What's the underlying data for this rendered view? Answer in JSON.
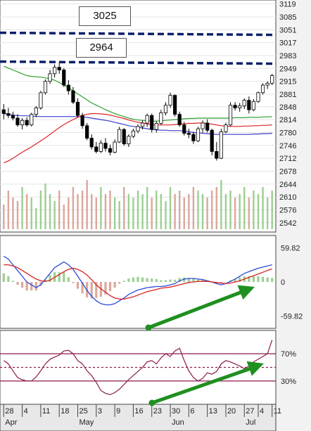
{
  "chart_data": [
    {
      "type": "candlestick",
      "panel": "price",
      "y_ticks": [
        3119,
        3085,
        3051,
        3017,
        2983,
        2949,
        2915,
        2881,
        2848,
        2814,
        2780,
        2746,
        2712,
        2678,
        2644,
        2610,
        2576,
        2542
      ],
      "ylim": [
        2525,
        3122
      ],
      "annotations": [
        {
          "label": "3025",
          "level": 3043,
          "line_color": "#0b1f6b"
        },
        {
          "label": "2964",
          "level": 2967,
          "line_color": "#0b1f6b"
        }
      ],
      "ohlc": [
        [
          2840,
          2855,
          2815,
          2830
        ],
        [
          2830,
          2845,
          2818,
          2825
        ],
        [
          2825,
          2835,
          2812,
          2818
        ],
        [
          2818,
          2828,
          2795,
          2800
        ],
        [
          2800,
          2818,
          2788,
          2812
        ],
        [
          2812,
          2820,
          2795,
          2800
        ],
        [
          2800,
          2832,
          2796,
          2828
        ],
        [
          2828,
          2850,
          2820,
          2845
        ],
        [
          2845,
          2890,
          2840,
          2885
        ],
        [
          2885,
          2920,
          2880,
          2915
        ],
        [
          2915,
          2945,
          2908,
          2935
        ],
        [
          2935,
          2960,
          2925,
          2952
        ],
        [
          2952,
          2965,
          2935,
          2945
        ],
        [
          2945,
          2950,
          2900,
          2905
        ],
        [
          2905,
          2918,
          2880,
          2890
        ],
        [
          2890,
          2900,
          2855,
          2860
        ],
        [
          2860,
          2870,
          2820,
          2825
        ],
        [
          2825,
          2832,
          2790,
          2798
        ],
        [
          2798,
          2805,
          2760,
          2765
        ],
        [
          2765,
          2775,
          2735,
          2742
        ],
        [
          2742,
          2755,
          2725,
          2730
        ],
        [
          2730,
          2760,
          2726,
          2752
        ],
        [
          2752,
          2765,
          2730,
          2738
        ],
        [
          2738,
          2748,
          2720,
          2728
        ],
        [
          2728,
          2762,
          2725,
          2755
        ],
        [
          2755,
          2795,
          2752,
          2788
        ],
        [
          2788,
          2792,
          2745,
          2750
        ],
        [
          2750,
          2775,
          2742,
          2770
        ],
        [
          2770,
          2790,
          2765,
          2784
        ],
        [
          2784,
          2802,
          2778,
          2796
        ],
        [
          2796,
          2812,
          2788,
          2805
        ],
        [
          2805,
          2830,
          2795,
          2825
        ],
        [
          2825,
          2830,
          2780,
          2788
        ],
        [
          2788,
          2810,
          2780,
          2804
        ],
        [
          2804,
          2840,
          2800,
          2832
        ],
        [
          2832,
          2860,
          2825,
          2852
        ],
        [
          2852,
          2885,
          2845,
          2878
        ],
        [
          2878,
          2880,
          2822,
          2828
        ],
        [
          2828,
          2835,
          2795,
          2800
        ],
        [
          2800,
          2808,
          2772,
          2778
        ],
        [
          2778,
          2790,
          2765,
          2775
        ],
        [
          2775,
          2782,
          2750,
          2758
        ],
        [
          2758,
          2795,
          2755,
          2790
        ],
        [
          2790,
          2812,
          2780,
          2805
        ],
        [
          2805,
          2815,
          2780,
          2786
        ],
        [
          2786,
          2790,
          2720,
          2730
        ],
        [
          2730,
          2755,
          2706,
          2712
        ],
        [
          2712,
          2790,
          2710,
          2782
        ],
        [
          2782,
          2806,
          2778,
          2800
        ],
        [
          2800,
          2860,
          2796,
          2852
        ],
        [
          2852,
          2860,
          2838,
          2845
        ],
        [
          2845,
          2858,
          2835,
          2850
        ],
        [
          2850,
          2870,
          2842,
          2865
        ],
        [
          2865,
          2875,
          2830,
          2840
        ],
        [
          2840,
          2868,
          2836,
          2862
        ],
        [
          2862,
          2888,
          2858,
          2885
        ],
        [
          2885,
          2910,
          2880,
          2905
        ],
        [
          2905,
          2915,
          2895,
          2910
        ],
        [
          2910,
          2935,
          2905,
          2930
        ]
      ],
      "volume_relative": [
        0.35,
        0.55,
        0.45,
        0.4,
        0.6,
        0.5,
        0.45,
        0.3,
        0.55,
        0.65,
        0.5,
        0.4,
        0.55,
        0.35,
        0.45,
        0.6,
        0.5,
        0.55,
        0.7,
        0.5,
        0.45,
        0.6,
        0.5,
        0.55,
        0.45,
        0.4,
        0.6,
        0.5,
        0.45,
        0.55,
        0.5,
        0.6,
        0.45,
        0.55,
        0.5,
        0.4,
        0.6,
        0.5,
        0.55,
        0.45,
        0.5,
        0.6,
        0.55,
        0.5,
        0.45,
        0.55,
        0.6,
        0.7,
        0.5,
        0.55,
        0.45,
        0.5,
        0.6,
        0.45,
        0.55,
        0.5,
        0.6,
        0.45,
        0.55
      ],
      "ma_green": [
        2955,
        2950,
        2945,
        2940,
        2935,
        2930,
        2928,
        2927,
        2926,
        2924,
        2922,
        2918,
        2912,
        2905,
        2898,
        2890,
        2882,
        2874,
        2866,
        2858,
        2852,
        2846,
        2840,
        2835,
        2830,
        2826,
        2822,
        2818,
        2815,
        2813,
        2812,
        2811,
        2810,
        2810,
        2811,
        2812,
        2813,
        2814,
        2815,
        2816,
        2817,
        2817,
        2818,
        2818,
        2818,
        2818,
        2818,
        2818,
        2818,
        2818,
        2819,
        2819,
        2819,
        2820,
        2820,
        2820,
        2821,
        2821,
        2822
      ],
      "ma_blue": [
        2830,
        2828,
        2826,
        2825,
        2824,
        2824,
        2823,
        2823,
        2822,
        2822,
        2822,
        2822,
        2822,
        2822,
        2822,
        2822,
        2822,
        2821,
        2820,
        2818,
        2816,
        2814,
        2812,
        2810,
        2807,
        2804,
        2801,
        2798,
        2796,
        2794,
        2792,
        2790,
        2788,
        2787,
        2786,
        2786,
        2785,
        2785,
        2785,
        2784,
        2782,
        2780,
        2779,
        2778,
        2777,
        2776,
        2775,
        2775,
        2775,
        2775,
        2775,
        2775,
        2775,
        2775,
        2776,
        2776,
        2777,
        2777,
        2778
      ],
      "ma_red": [
        2700,
        2705,
        2712,
        2720,
        2728,
        2735,
        2742,
        2750,
        2758,
        2766,
        2775,
        2784,
        2793,
        2801,
        2808,
        2814,
        2820,
        2825,
        2828,
        2830,
        2830,
        2829,
        2828,
        2826,
        2823,
        2820,
        2817,
        2813,
        2810,
        2807,
        2805,
        2803,
        2801,
        2800,
        2800,
        2800,
        2800,
        2801,
        2802,
        2803,
        2804,
        2804,
        2805,
        2805,
        2804,
        2802,
        2800,
        2798,
        2797,
        2796,
        2796,
        2796,
        2797,
        2797,
        2798,
        2798,
        2799,
        2799,
        2800
      ]
    },
    {
      "type": "macd",
      "panel": "macd",
      "y_ticks": [
        "59.82",
        "0",
        "-59.82"
      ],
      "ylim": [
        -75,
        75
      ],
      "macd": [
        45,
        40,
        30,
        20,
        10,
        0,
        -5,
        -10,
        -5,
        5,
        15,
        25,
        30,
        35,
        30,
        22,
        10,
        -2,
        -15,
        -25,
        -33,
        -38,
        -40,
        -40,
        -38,
        -33,
        -28,
        -22,
        -18,
        -14,
        -12,
        -10,
        -9,
        -8,
        -8,
        -7,
        -5,
        -3,
        2,
        5,
        6,
        6,
        5,
        4,
        2,
        0,
        -3,
        -5,
        -3,
        1,
        5,
        10,
        15,
        18,
        21,
        24,
        26,
        28,
        30
      ],
      "signal": [
        30,
        30,
        28,
        25,
        20,
        15,
        10,
        5,
        2,
        1,
        3,
        8,
        13,
        18,
        22,
        24,
        22,
        18,
        12,
        4,
        -5,
        -12,
        -18,
        -24,
        -28,
        -30,
        -30,
        -28,
        -26,
        -23,
        -20,
        -17,
        -15,
        -13,
        -11,
        -10,
        -9,
        -7,
        -5,
        -3,
        -1,
        0,
        1,
        1,
        1,
        0,
        -1,
        -2,
        -3,
        -2,
        0,
        2,
        5,
        8,
        11,
        14,
        17,
        20,
        23
      ]
    },
    {
      "type": "line",
      "panel": "oscillator",
      "y_ticks": [
        "70%",
        "30%"
      ],
      "ylim": [
        0,
        100
      ],
      "values": [
        60,
        55,
        45,
        35,
        32,
        30,
        30,
        36,
        45,
        55,
        62,
        65,
        68,
        74,
        75,
        70,
        60,
        55,
        45,
        38,
        28,
        16,
        12,
        10,
        13,
        18,
        25,
        32,
        38,
        44,
        50,
        58,
        60,
        55,
        64,
        70,
        66,
        74,
        78,
        60,
        45,
        35,
        30,
        34,
        42,
        40,
        44,
        55,
        60,
        58,
        55,
        52,
        48,
        52,
        58,
        62,
        66,
        70,
        90
      ],
      "guide_levels": [
        70,
        50,
        30
      ]
    }
  ],
  "x_axis": {
    "ticks": [
      "28",
      "4",
      "11",
      "18",
      "25",
      "3",
      "9",
      "16",
      "23",
      "30",
      "6",
      "13",
      "20",
      "27",
      "4",
      "11"
    ],
    "months": [
      "Apr",
      "May",
      "Jun",
      "Jul"
    ]
  },
  "annotation_boxes": {
    "top": "3025",
    "bottom": "2964"
  },
  "colors": {
    "price_up": "#ffffff",
    "price_down": "#000000",
    "ma_green": "#2fa02f",
    "ma_blue": "#3a3acc",
    "ma_red": "#e02020",
    "volume_up": "#9ccf92",
    "volume_down": "#dba79c",
    "macd_line": "#2a4bd7",
    "signal_line": "#d62020",
    "osc_line": "#8b1a4d",
    "osc_guide": "#8b1a4d",
    "arrow": "#1f8f1f",
    "level_line": "#0b1f6b"
  }
}
